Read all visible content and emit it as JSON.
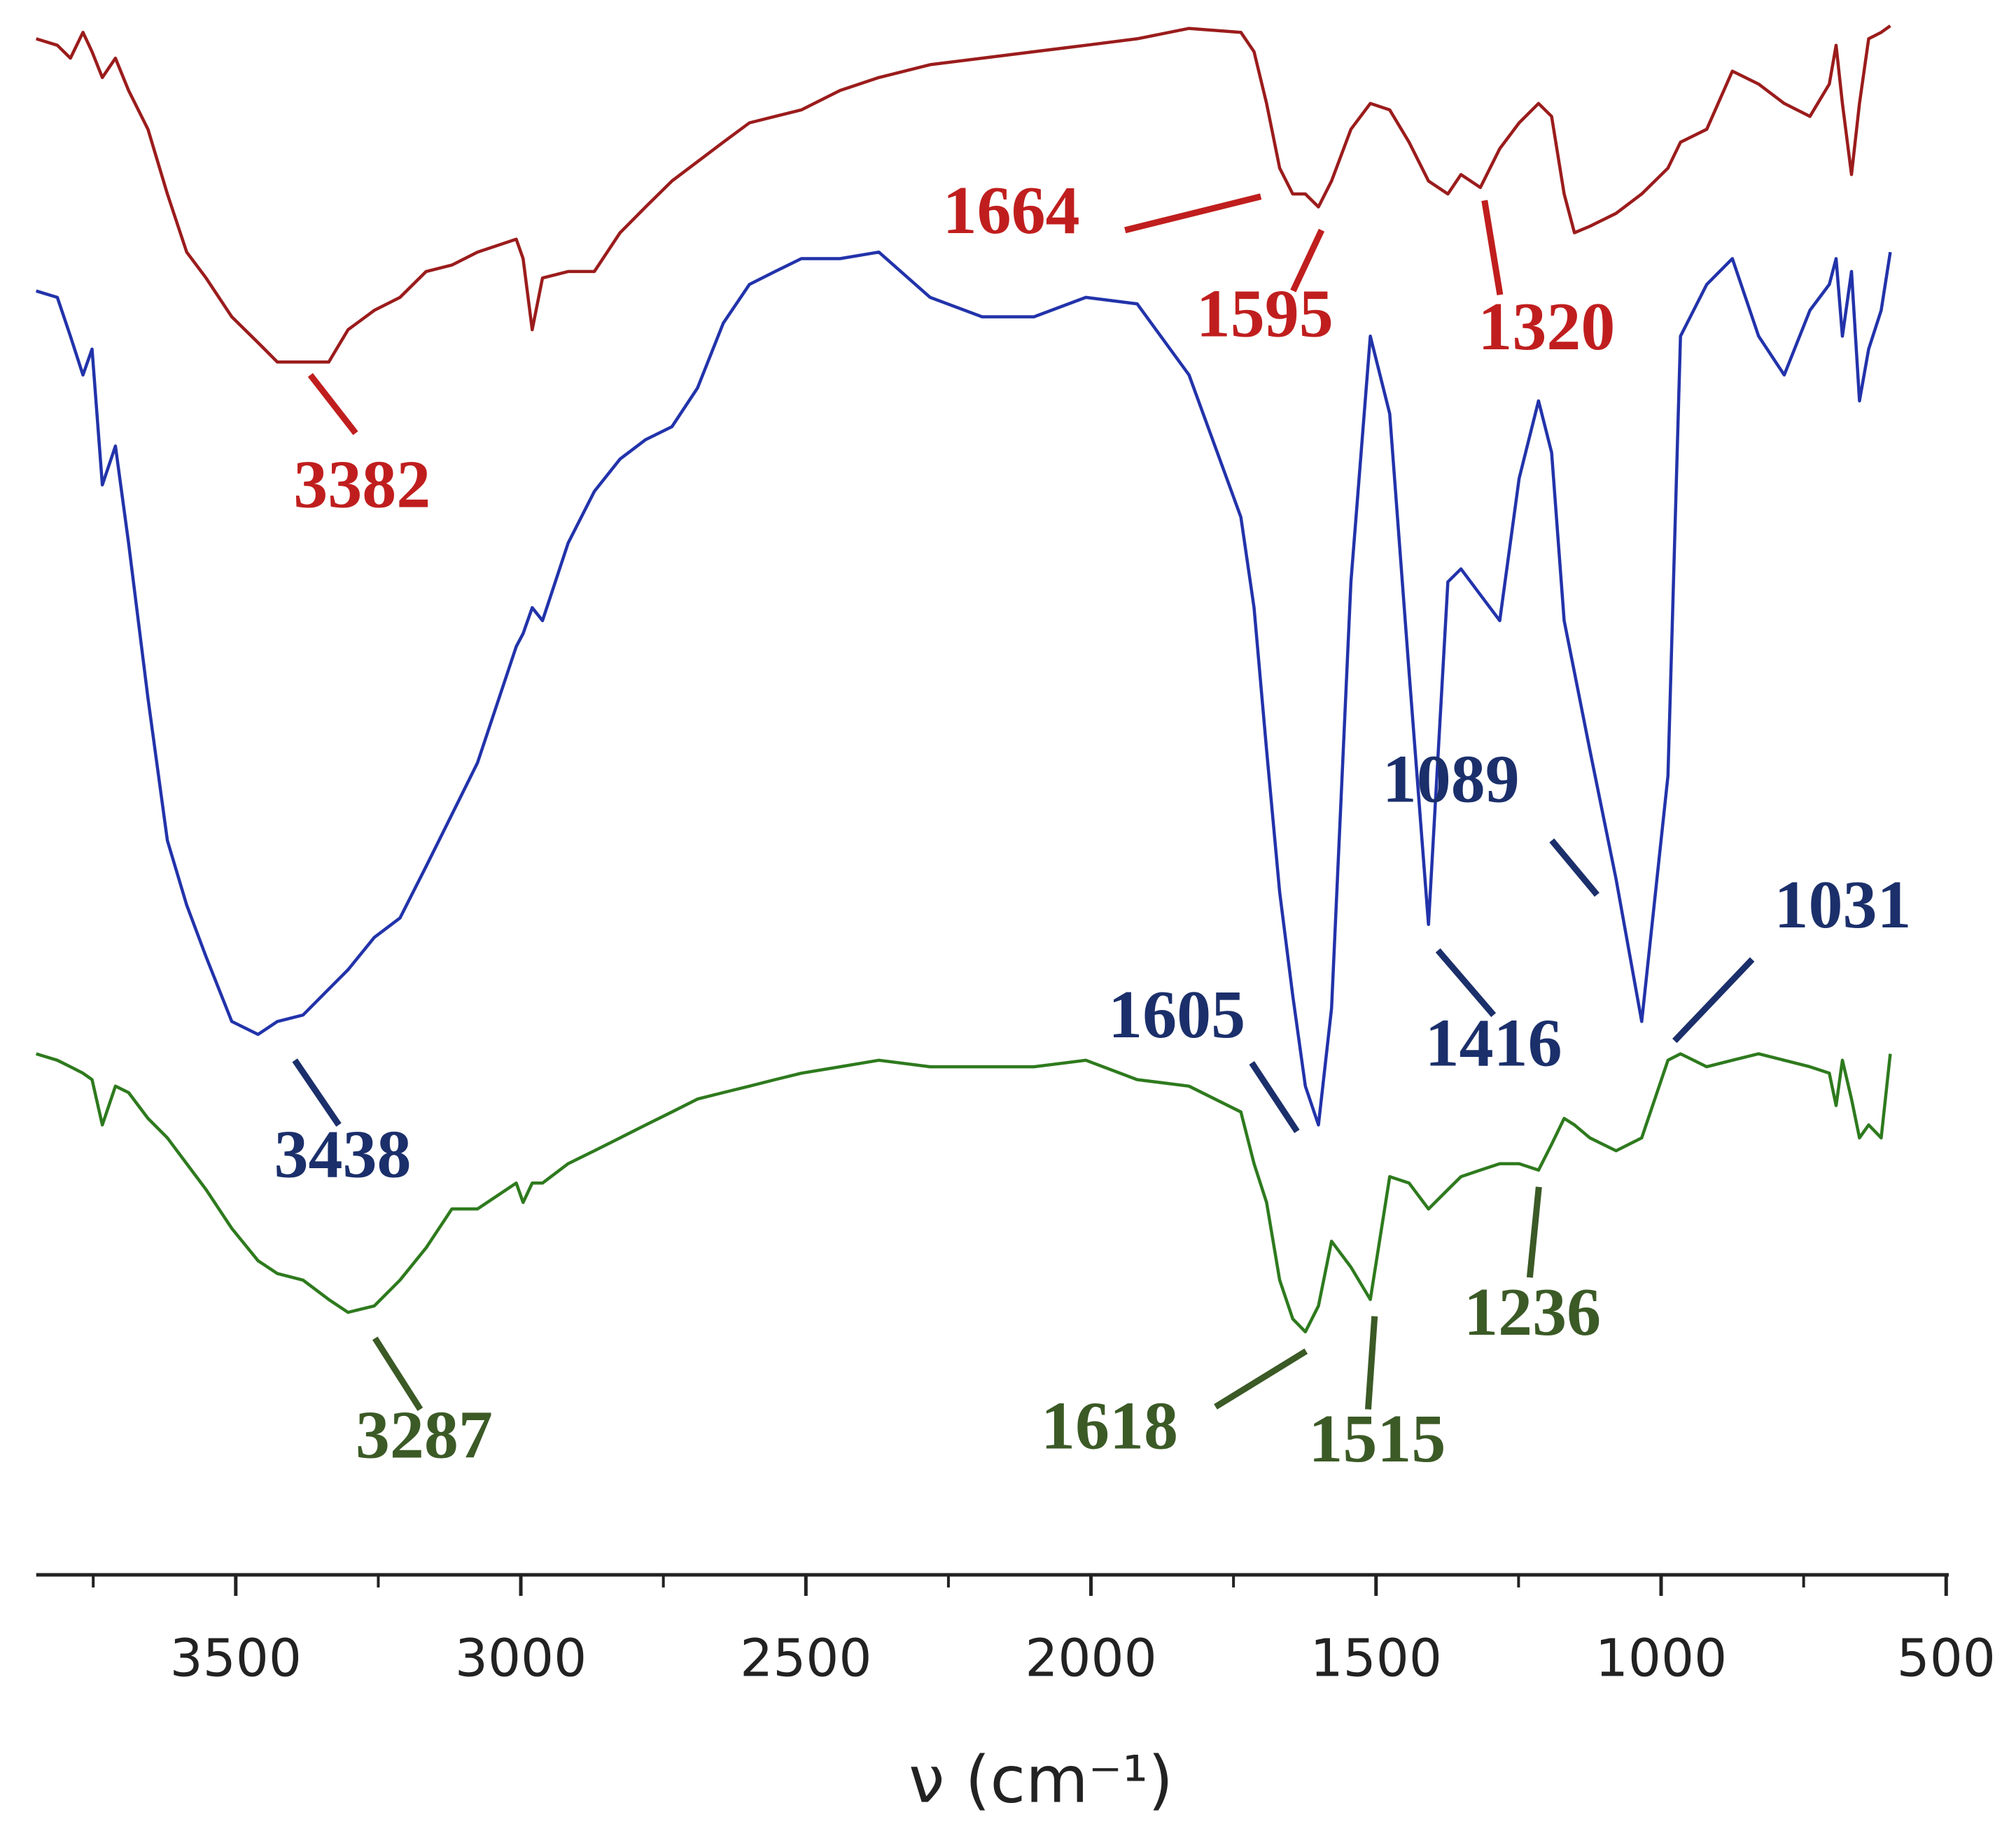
{
  "chart_data": {
    "type": "line",
    "xlabel": "ν (cm⁻¹)",
    "xlim": [
      3850,
      500
    ],
    "xticks": [
      3500,
      3000,
      2500,
      2000,
      1500,
      1000,
      500
    ],
    "xminor_ticks": [
      3750,
      3250,
      2750,
      2250,
      1750,
      1250,
      750
    ],
    "ylim": [
      0,
      120
    ],
    "x": [
      3850,
      3813,
      3790,
      3768,
      3752,
      3734,
      3711,
      3688,
      3654,
      3620,
      3586,
      3552,
      3507,
      3461,
      3427,
      3382,
      3337,
      3303,
      3257,
      3212,
      3166,
      3121,
      3076,
      3008,
      2996,
      2980,
      2962,
      2917,
      2871,
      2826,
      2781,
      2735,
      2690,
      2645,
      2599,
      2554,
      2508,
      2440,
      2372,
      2282,
      2191,
      2100,
      2009,
      1919,
      1828,
      1737,
      1714,
      1692,
      1669,
      1646,
      1624,
      1601,
      1578,
      1544,
      1510,
      1476,
      1442,
      1408,
      1374,
      1351,
      1317,
      1283,
      1249,
      1215,
      1192,
      1170,
      1152,
      1125,
      1079,
      1034,
      988,
      966,
      920,
      875,
      829,
      784,
      739,
      705,
      693,
      682,
      666,
      652,
      636,
      614,
      598
    ],
    "series": [
      {
        "color": "#9b1c1c",
        "label_color": "#c01e1e",
        "values": [
          117,
          116.5,
          115.5,
          117.5,
          116,
          114,
          115.5,
          113,
          110,
          105,
          100.5,
          98.5,
          95.5,
          93.5,
          92,
          92,
          92,
          94.5,
          96,
          97,
          99,
          99.5,
          100.5,
          101.5,
          100,
          94.5,
          98.5,
          99,
          99,
          102,
          104,
          106,
          107.5,
          109,
          110.5,
          111,
          111.5,
          113,
          114,
          115,
          115.5,
          116,
          116.5,
          117,
          117.8,
          117.5,
          116,
          112,
          107,
          105,
          105,
          104,
          106,
          110,
          112,
          111.5,
          109,
          106,
          105,
          106.5,
          105.5,
          108.5,
          110.5,
          112,
          111,
          105,
          102,
          102.5,
          103.5,
          105,
          107,
          109,
          110,
          114.5,
          113.5,
          112,
          111,
          113.5,
          116.5,
          112,
          106.5,
          112,
          117,
          117.5,
          118
        ],
        "peaks": [
          3382,
          1664,
          1595,
          1320
        ]
      },
      {
        "color": "#2233aa",
        "label_color": "#1b2f6b",
        "values": [
          97.5,
          97,
          94,
          91,
          93,
          82.5,
          85.5,
          78,
          66,
          55,
          50,
          46,
          41,
          40,
          41,
          41.5,
          43.5,
          45,
          47.5,
          49,
          53,
          57,
          61,
          70,
          71,
          73,
          72,
          78,
          82,
          84.5,
          86,
          87,
          90,
          95,
          98,
          99,
          100,
          100,
          100.5,
          97,
          95.5,
          95.5,
          97,
          96.5,
          91,
          80,
          73,
          62,
          51,
          43,
          36,
          33,
          42,
          75,
          94,
          88,
          68,
          48.5,
          75,
          76,
          74,
          72,
          83,
          89,
          85,
          72,
          68,
          62,
          52,
          41,
          60,
          94,
          98,
          100,
          94,
          91,
          96,
          98,
          100,
          94,
          99,
          89,
          93,
          96,
          100.5
        ],
        "peaks": [
          3438,
          1605,
          1416,
          1089,
          1031
        ]
      },
      {
        "color": "#2e7a1e",
        "label_color": "#3b5a26",
        "values": [
          38.5,
          38,
          37.5,
          37,
          36.5,
          33,
          36,
          35.5,
          33.5,
          32,
          30,
          28,
          25,
          22.5,
          21.5,
          21,
          19.5,
          18.5,
          19,
          21,
          23.5,
          26.5,
          26.5,
          28.5,
          27,
          28.5,
          28.5,
          30,
          31,
          32,
          33,
          34,
          35,
          35.5,
          36,
          36.5,
          37,
          37.5,
          38,
          37.5,
          37.5,
          37.5,
          38,
          36.5,
          36,
          34,
          30,
          27,
          21,
          18,
          17,
          19,
          24,
          22,
          19.5,
          29,
          28.5,
          26.5,
          28,
          29,
          29.5,
          30,
          30,
          29.5,
          31.5,
          33.5,
          33,
          32,
          31,
          32,
          38,
          38.5,
          37.5,
          38,
          38.5,
          38,
          37.5,
          37,
          34.5,
          38,
          35,
          32,
          33,
          32,
          38.5
        ],
        "peaks": [
          3287,
          1618,
          1515,
          1236
        ]
      }
    ]
  }
}
